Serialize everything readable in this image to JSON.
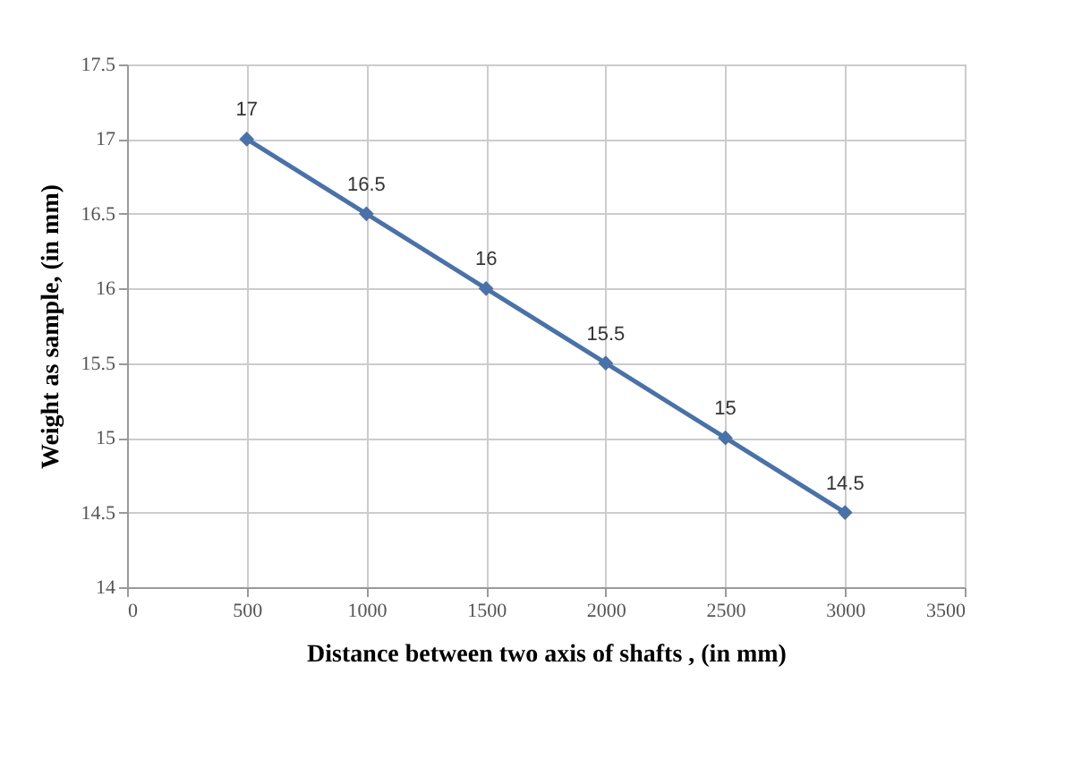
{
  "chart_data": {
    "type": "line",
    "xlabel": "Distance between two axis of shafts , (in mm)",
    "ylabel": "Weight as sample, (in mm)",
    "x": [
      500,
      1000,
      1500,
      2000,
      2500,
      3000
    ],
    "series": [
      {
        "color": "#4a72a8",
        "values": [
          17,
          16.5,
          16,
          15.5,
          15,
          14.5
        ]
      }
    ],
    "xlim": [
      0,
      3500
    ],
    "xticks": [
      0,
      500,
      1000,
      1500,
      2000,
      2500,
      3000,
      3500
    ],
    "ylim": [
      14,
      17.5
    ],
    "yticks": [
      14,
      14.5,
      15,
      15.5,
      16,
      16.5,
      17,
      17.5
    ],
    "grid": true,
    "marker": "diamond",
    "line_style": "solid",
    "data_labels": true
  }
}
